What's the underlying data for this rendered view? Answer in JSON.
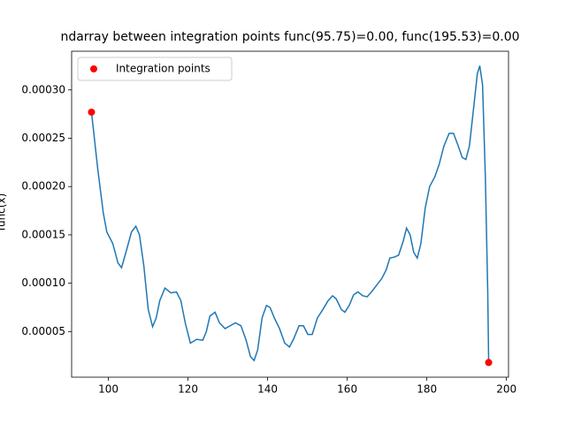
{
  "chart_data": {
    "type": "line",
    "title": "ndarray between integration points func(95.75)=0.00, func(195.53)=0.00",
    "ylabel": "func(x)",
    "xlim": [
      90.76,
      200.52
    ],
    "xticks": [
      100,
      120,
      140,
      160,
      180,
      200
    ],
    "ylim": [
      2.8e-06,
      0.00034
    ],
    "yticks": [
      {
        "value": 5e-05,
        "label": "0.00005"
      },
      {
        "value": 0.0001,
        "label": "0.00010"
      },
      {
        "value": 0.00015,
        "label": "0.00015"
      },
      {
        "value": 0.0002,
        "label": "0.00020"
      },
      {
        "value": 0.00025,
        "label": "0.00025"
      },
      {
        "value": 0.0003,
        "label": "0.00030"
      }
    ],
    "legend": "upper left",
    "series": [
      {
        "type": "line",
        "color": "#1f77b4",
        "x": [
          95.75,
          97.3,
          98.7,
          99.6,
          101.1,
          102.4,
          103.3,
          104.4,
          105.8,
          106.9,
          107.8,
          108.9,
          110.0,
          111.1,
          112.0,
          112.9,
          114.2,
          115.7,
          117.1,
          118.2,
          119.3,
          120.6,
          122.2,
          123.7,
          124.6,
          125.5,
          126.8,
          127.9,
          129.3,
          130.6,
          131.9,
          133.3,
          134.6,
          135.7,
          136.6,
          137.5,
          138.6,
          139.7,
          140.6,
          141.7,
          143.0,
          144.3,
          145.5,
          146.6,
          147.9,
          149.0,
          150.1,
          151.2,
          152.5,
          153.9,
          155.2,
          156.3,
          157.2,
          158.5,
          159.4,
          160.5,
          161.6,
          162.7,
          163.9,
          165.0,
          166.1,
          167.4,
          168.7,
          169.8,
          170.7,
          171.8,
          172.9,
          174.1,
          174.9,
          175.8,
          176.7,
          177.6,
          178.5,
          179.6,
          180.7,
          182.0,
          183.1,
          184.3,
          185.6,
          186.7,
          187.8,
          188.9,
          189.8,
          190.7,
          191.8,
          192.7,
          193.3,
          194.0,
          194.7,
          195.3,
          195.53
        ],
        "values": [
          0.000277,
          0.000219,
          0.000173,
          0.000153,
          0.000141,
          0.000121,
          0.000116,
          0.000132,
          0.000153,
          0.000159,
          0.00015,
          0.000118,
          7.3e-05,
          5.5e-05,
          6.4e-05,
          8.2e-05,
          9.5e-05,
          9e-05,
          9.1e-05,
          8.2e-05,
          5.9e-05,
          3.8e-05,
          4.2e-05,
          4.1e-05,
          5e-05,
          6.6e-05,
          7e-05,
          5.9e-05,
          5.3e-05,
          5.6e-05,
          5.9e-05,
          5.6e-05,
          4.1e-05,
          2.4e-05,
          2e-05,
          3.1e-05,
          6.4e-05,
          7.7e-05,
          7.5e-05,
          6.4e-05,
          5.3e-05,
          3.8e-05,
          3.4e-05,
          4.3e-05,
          5.6e-05,
          5.6e-05,
          4.7e-05,
          4.7e-05,
          6.4e-05,
          7.3e-05,
          8.2e-05,
          8.7e-05,
          8.4e-05,
          7.3e-05,
          7e-05,
          7.7e-05,
          8.8e-05,
          9.1e-05,
          8.7e-05,
          8.6e-05,
          9.1e-05,
          9.8e-05,
          0.000105,
          0.000114,
          0.000126,
          0.000127,
          0.000129,
          0.000144,
          0.000157,
          0.00015,
          0.000132,
          0.000126,
          0.000141,
          0.000178,
          0.0002,
          0.00021,
          0.000223,
          0.000242,
          0.000255,
          0.000255,
          0.000243,
          0.00023,
          0.000228,
          0.000242,
          0.000283,
          0.000317,
          0.000325,
          0.000305,
          0.00021,
          9.1e-05,
          1.8e-05
        ]
      },
      {
        "type": "scatter",
        "name": "Integration points",
        "color": "red",
        "x": [
          95.75,
          195.53
        ],
        "values": [
          0.000277,
          1.8e-05
        ]
      }
    ]
  }
}
